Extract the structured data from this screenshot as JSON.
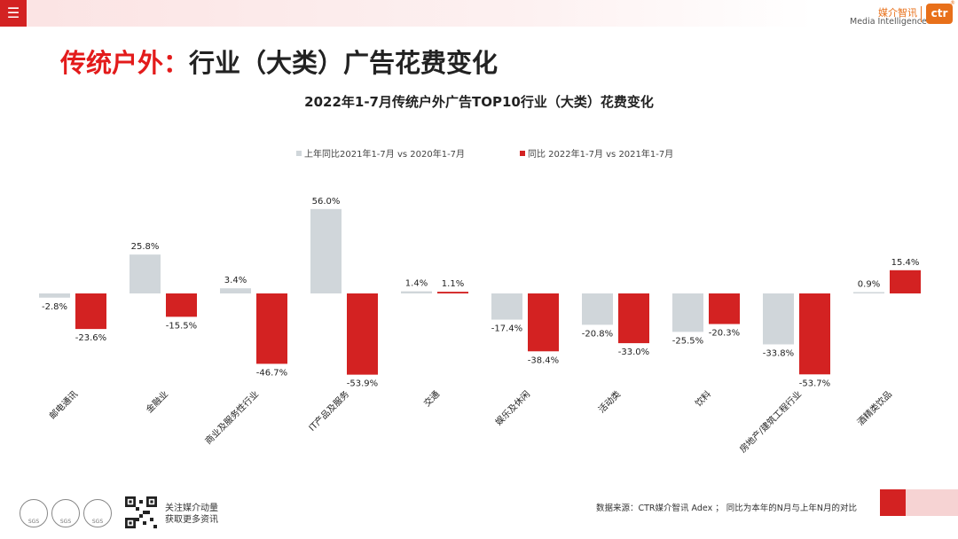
{
  "header": {
    "menu_icon": "menu-icon",
    "brand_cn": "媒介智讯",
    "brand_en": "Media Intelligence",
    "logo_text": "ctr",
    "logo_tm": "®"
  },
  "page": {
    "title_red": "传统户外：",
    "title_black": "行业（大类）广告花费变化"
  },
  "chart_data": {
    "type": "bar",
    "title": "2022年1-7月传统户外广告TOP10行业（大类）花费变化",
    "categories": [
      "邮电通讯",
      "金融业",
      "商业及服务性行业",
      "IT产品及服务",
      "交通",
      "娱乐及休闲",
      "活动类",
      "饮料",
      "房地产/建筑工程行业",
      "酒精类饮品"
    ],
    "series": [
      {
        "name": "上年同比2021年1-7月  vs  2020年1-7月",
        "color": "#d0d6da",
        "values": [
          -2.8,
          25.8,
          3.4,
          56.0,
          1.4,
          -17.4,
          -20.8,
          -25.5,
          -33.8,
          0.9
        ],
        "labels": [
          "-2.8%",
          "25.8%",
          "3.4%",
          "56.0%",
          "1.4%",
          "-17.4%",
          "-20.8%",
          "-25.5%",
          "-33.8%",
          "0.9%"
        ]
      },
      {
        "name": "同比 2022年1-7月  vs  2021年1-7月",
        "color": "#d32222",
        "values": [
          -23.6,
          -15.5,
          -46.7,
          -53.9,
          1.1,
          -38.4,
          -33.0,
          -20.3,
          -53.7,
          15.4
        ],
        "labels": [
          "-23.6%",
          "-15.5%",
          "-46.7%",
          "-53.9%",
          "1.1%",
          "-38.4%",
          "-33.0%",
          "-20.3%",
          "-53.7%",
          "15.4%"
        ]
      }
    ],
    "unit": "%",
    "legend_position": "top-center",
    "grid": false
  },
  "footer": {
    "source": "数据来源：CTR媒介智讯 Adex ；  同比为本年的N月与上年N月的对比",
    "follow_line1": "关注媒介动量",
    "follow_line2": "获取更多资讯",
    "sgs_labels": [
      "SGS",
      "SGS",
      "SGS"
    ]
  }
}
